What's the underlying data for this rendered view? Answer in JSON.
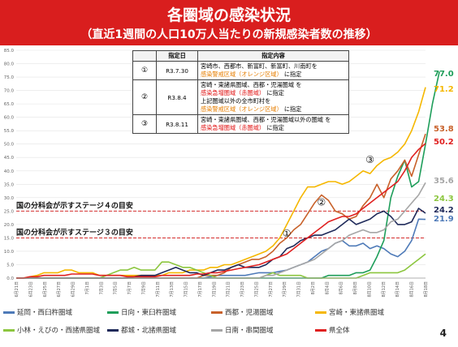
{
  "header": {
    "title": "各圏域の感染状況",
    "subtitle": "（直近1週間の人口10万人当たりの新規感染者数の推移）"
  },
  "page_number": "4",
  "designation_table": {
    "headers": [
      "",
      "指定日",
      "指定内容"
    ],
    "rows": [
      {
        "no": "①",
        "date": "R3.7.30",
        "lines": [
          {
            "text": "宮崎市、西都市、新富町、新富町、川南町を",
            "color": "black"
          },
          {
            "text": "感染警戒区域（オレンジ区域）",
            "suffix": "に指定",
            "color": "orange"
          }
        ]
      },
      {
        "no": "②",
        "date": "R3.8.4",
        "lines": [
          {
            "text": "宮崎・東諸県圏域、西都・児湯圏域 を",
            "color": "black"
          },
          {
            "text": "感染急増圏域（赤圏域）",
            "suffix": "に指定",
            "color": "red"
          },
          {
            "text": "上記圏域以外の全市町村を",
            "color": "black"
          },
          {
            "text": "感染警戒区域（オレンジ区域）",
            "suffix": "に指定",
            "color": "orange"
          }
        ]
      },
      {
        "no": "③",
        "date": "R3.8.11",
        "lines": [
          {
            "text": "宮崎・東諸県圏域、西都・児湯圏域以外の圏域 を",
            "color": "black"
          },
          {
            "text": "感染急増圏域（赤圏域）",
            "suffix": "に指定",
            "color": "red"
          }
        ]
      }
    ]
  },
  "chart_data": {
    "type": "line",
    "ylim": [
      0,
      85
    ],
    "yticks": [
      "0.0",
      "5.0",
      "10.0",
      "15.0",
      "20.0",
      "25.0",
      "30.0",
      "35.0",
      "40.0",
      "45.0",
      "50.0",
      "55.0",
      "60.0",
      "65.0",
      "70.0",
      "75.0",
      "80.0",
      "85.0"
    ],
    "xtick_labels": [
      "6月21日",
      "6月23日",
      "6月25日",
      "6月27日",
      "6月29日",
      "7月1日",
      "7月3日",
      "7月5日",
      "7月7日",
      "7月9日",
      "7月11日",
      "7月13日",
      "7月15日",
      "7月17日",
      "7月19日",
      "7月21日",
      "7月23日",
      "7月25日",
      "7月27日",
      "7月29日",
      "7月31日",
      "8月2日",
      "8月4日",
      "8月6日",
      "8月8日",
      "8月10日",
      "8月12日",
      "8月14日",
      "8月16日",
      "8月18日"
    ],
    "reference_lines": [
      {
        "label": "国の分科会が示すステージ４の目安",
        "y": 25
      },
      {
        "label": "国の分科会が示すステージ３の目安",
        "y": 15
      }
    ],
    "markers": [
      {
        "label": "①",
        "x": 39,
        "y": 15.5
      },
      {
        "label": "②",
        "x": 44,
        "y": 27
      },
      {
        "label": "③",
        "x": 51,
        "y": 43
      }
    ],
    "series": [
      {
        "name": "延岡・西臼杵圏域",
        "color": "#4e7ab8",
        "end_label": "21.9",
        "values": [
          0,
          0,
          0,
          0,
          0,
          0,
          0,
          0,
          0,
          0,
          0,
          0,
          0,
          0,
          0,
          0,
          0,
          0,
          0,
          0,
          0,
          0,
          0,
          0,
          0,
          0,
          0,
          0,
          0.5,
          1,
          1,
          1,
          1,
          1,
          1.5,
          2,
          2,
          2,
          2.5,
          3,
          4,
          5,
          6,
          8,
          10,
          11,
          13,
          14,
          12,
          12,
          13,
          11,
          12,
          11,
          9,
          8,
          10,
          14,
          22,
          21.9
        ]
      },
      {
        "name": "日向・東臼杵圏域",
        "color": "#1e9e5a",
        "end_label": "77.0",
        "values": [
          0,
          0,
          0,
          0,
          0,
          0,
          0,
          0,
          0,
          0,
          0,
          0,
          0,
          0,
          0,
          0,
          0,
          0,
          0,
          0,
          0,
          0,
          0,
          0,
          0,
          0,
          0,
          0,
          0,
          0,
          0,
          0,
          0,
          0,
          0,
          0,
          0,
          0,
          0,
          0,
          0,
          0,
          0,
          0,
          0,
          1,
          1,
          1,
          1,
          2,
          2,
          3,
          8,
          14,
          30,
          38,
          44,
          34,
          36,
          50,
          65,
          77
        ]
      },
      {
        "name": "西都・児湯圏域",
        "color": "#c8612a",
        "end_label": "53.8",
        "values": [
          0,
          0,
          0,
          0,
          0,
          0,
          0,
          0,
          0,
          0,
          0,
          0,
          0,
          0,
          0,
          0,
          0,
          0,
          0,
          0,
          0,
          0,
          0,
          0,
          0,
          0,
          0,
          1,
          1,
          1,
          2,
          4,
          5,
          6,
          7,
          7,
          8,
          10,
          13,
          15,
          18,
          20,
          24,
          28,
          31,
          29,
          25,
          24,
          22,
          23,
          27,
          30,
          35,
          30,
          37,
          40,
          44,
          38,
          46,
          53.8
        ]
      },
      {
        "name": "宮崎・東諸県圏域",
        "color": "#f5b700",
        "end_label": "71.2",
        "values": [
          0,
          0,
          0.5,
          1,
          2,
          2,
          2,
          3,
          3,
          2,
          2,
          2,
          1,
          1,
          1,
          1,
          1,
          1,
          1,
          1,
          1,
          1,
          2,
          2,
          2,
          3,
          3,
          3,
          4,
          4,
          5,
          5,
          6,
          7,
          8,
          9,
          10,
          12,
          15,
          20,
          25,
          30,
          34,
          34,
          35,
          36,
          36,
          35,
          36,
          38,
          40,
          39,
          42,
          44,
          45,
          47,
          50,
          55,
          62,
          71.2
        ]
      },
      {
        "name": "小林・えびの・西諸県圏域",
        "color": "#8cc63f",
        "end_label": "",
        "values": [
          0,
          0,
          0,
          0,
          0,
          0,
          0,
          0,
          0,
          0,
          0,
          0,
          0,
          1,
          2,
          3,
          3,
          4,
          3,
          3,
          3,
          6,
          6,
          5,
          4,
          4,
          3,
          2,
          1,
          0,
          0,
          0,
          0,
          0,
          0,
          0,
          1,
          2,
          1,
          1,
          1,
          1,
          0,
          0,
          0,
          0,
          0,
          0,
          0,
          0,
          1,
          2,
          2,
          2,
          2,
          2,
          3,
          5,
          7,
          9
        ]
      },
      {
        "name": "都城・北諸県圏域",
        "color": "#1f2a5a",
        "end_label": "24.2",
        "values": [
          0,
          0,
          0,
          0,
          0,
          0,
          0,
          0,
          0,
          0,
          0,
          0,
          0,
          0,
          0,
          0,
          0,
          0.5,
          1,
          1,
          1,
          2,
          3,
          4,
          3,
          2,
          2,
          1,
          2,
          3,
          3,
          4,
          5,
          4,
          4,
          4,
          5,
          7,
          8,
          11,
          12,
          14,
          15,
          16,
          16,
          17,
          18,
          20,
          22,
          20,
          21,
          22,
          24,
          25,
          23,
          20,
          20,
          21,
          26,
          24.2
        ]
      },
      {
        "name": "日南・串間圏域",
        "color": "#a6a6a6",
        "end_label": "35.6",
        "values": [
          0,
          0,
          0,
          0,
          0,
          0,
          0,
          0,
          0,
          0,
          0,
          0,
          0,
          0,
          0,
          0,
          0,
          0,
          0,
          0,
          0,
          0,
          0,
          0,
          0,
          0,
          0,
          0,
          0,
          0,
          0,
          0,
          0,
          0,
          0,
          0,
          1,
          1,
          2,
          3,
          4,
          5,
          6,
          7,
          9,
          11,
          13,
          14,
          16,
          17,
          18,
          17,
          17,
          18,
          21,
          22,
          25,
          28,
          31,
          35.6
        ]
      },
      {
        "name": "県全体",
        "color": "#e02020",
        "end_label": "50.2",
        "values": [
          0,
          0,
          0.5,
          0.5,
          1,
          1,
          1,
          1,
          1.5,
          1.5,
          1.5,
          1.5,
          1,
          1,
          1,
          1,
          0.5,
          0.5,
          0.5,
          0.5,
          0.5,
          1,
          1,
          1,
          1,
          1,
          1.5,
          1.5,
          2,
          2,
          2.5,
          3,
          3.5,
          4,
          4.5,
          5,
          6,
          7,
          8,
          9,
          11,
          13,
          15,
          17,
          19,
          21,
          22,
          23,
          23,
          24,
          26,
          28,
          30,
          32,
          34,
          36,
          40,
          45,
          48,
          50.2
        ]
      }
    ]
  }
}
